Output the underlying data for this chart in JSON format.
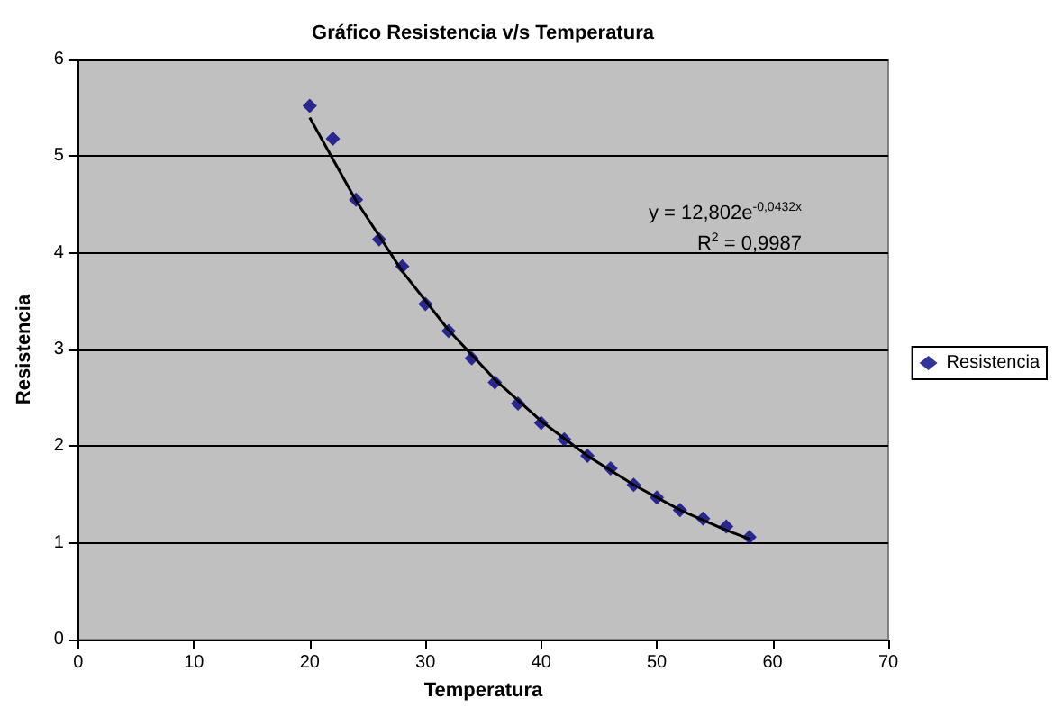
{
  "chart_data": {
    "type": "scatter",
    "title": "Gráfico Resistencia v/s Temperatura",
    "xlabel": "Temperatura",
    "ylabel": "Resistencia",
    "xlim": [
      0,
      70
    ],
    "xticks": [
      0,
      10,
      20,
      30,
      40,
      50,
      60,
      70
    ],
    "ylim": [
      0,
      6
    ],
    "yticks": [
      0,
      1,
      2,
      3,
      4,
      5,
      6
    ],
    "grid": "y",
    "legend": "right",
    "annotations": [
      "y = 12,802e$^{-0,0432x}$",
      "R$^{2}$ = 0,9987"
    ],
    "series": [
      {
        "name": "Resistencia",
        "color": "#000080",
        "marker": "diamond",
        "x": [
          20,
          22,
          24,
          26,
          28,
          30,
          32,
          34,
          36,
          38,
          40,
          42,
          44,
          46,
          48,
          50,
          52,
          54,
          56,
          58
        ],
        "values": [
          5.52,
          5.18,
          4.55,
          4.14,
          3.86,
          3.47,
          3.19,
          2.91,
          2.66,
          2.44,
          2.24,
          2.07,
          1.9,
          1.77,
          1.6,
          1.47,
          1.34,
          1.25,
          1.17,
          1.06
        ]
      },
      {
        "type": "line",
        "marker": "none",
        "color": "#000000",
        "x": [
          20,
          24,
          28,
          32,
          36,
          40,
          44,
          48,
          52,
          56,
          58
        ],
        "values": [
          5.4,
          4.54,
          3.81,
          3.2,
          2.69,
          2.26,
          1.9,
          1.6,
          1.34,
          1.13,
          1.04
        ]
      }
    ]
  }
}
